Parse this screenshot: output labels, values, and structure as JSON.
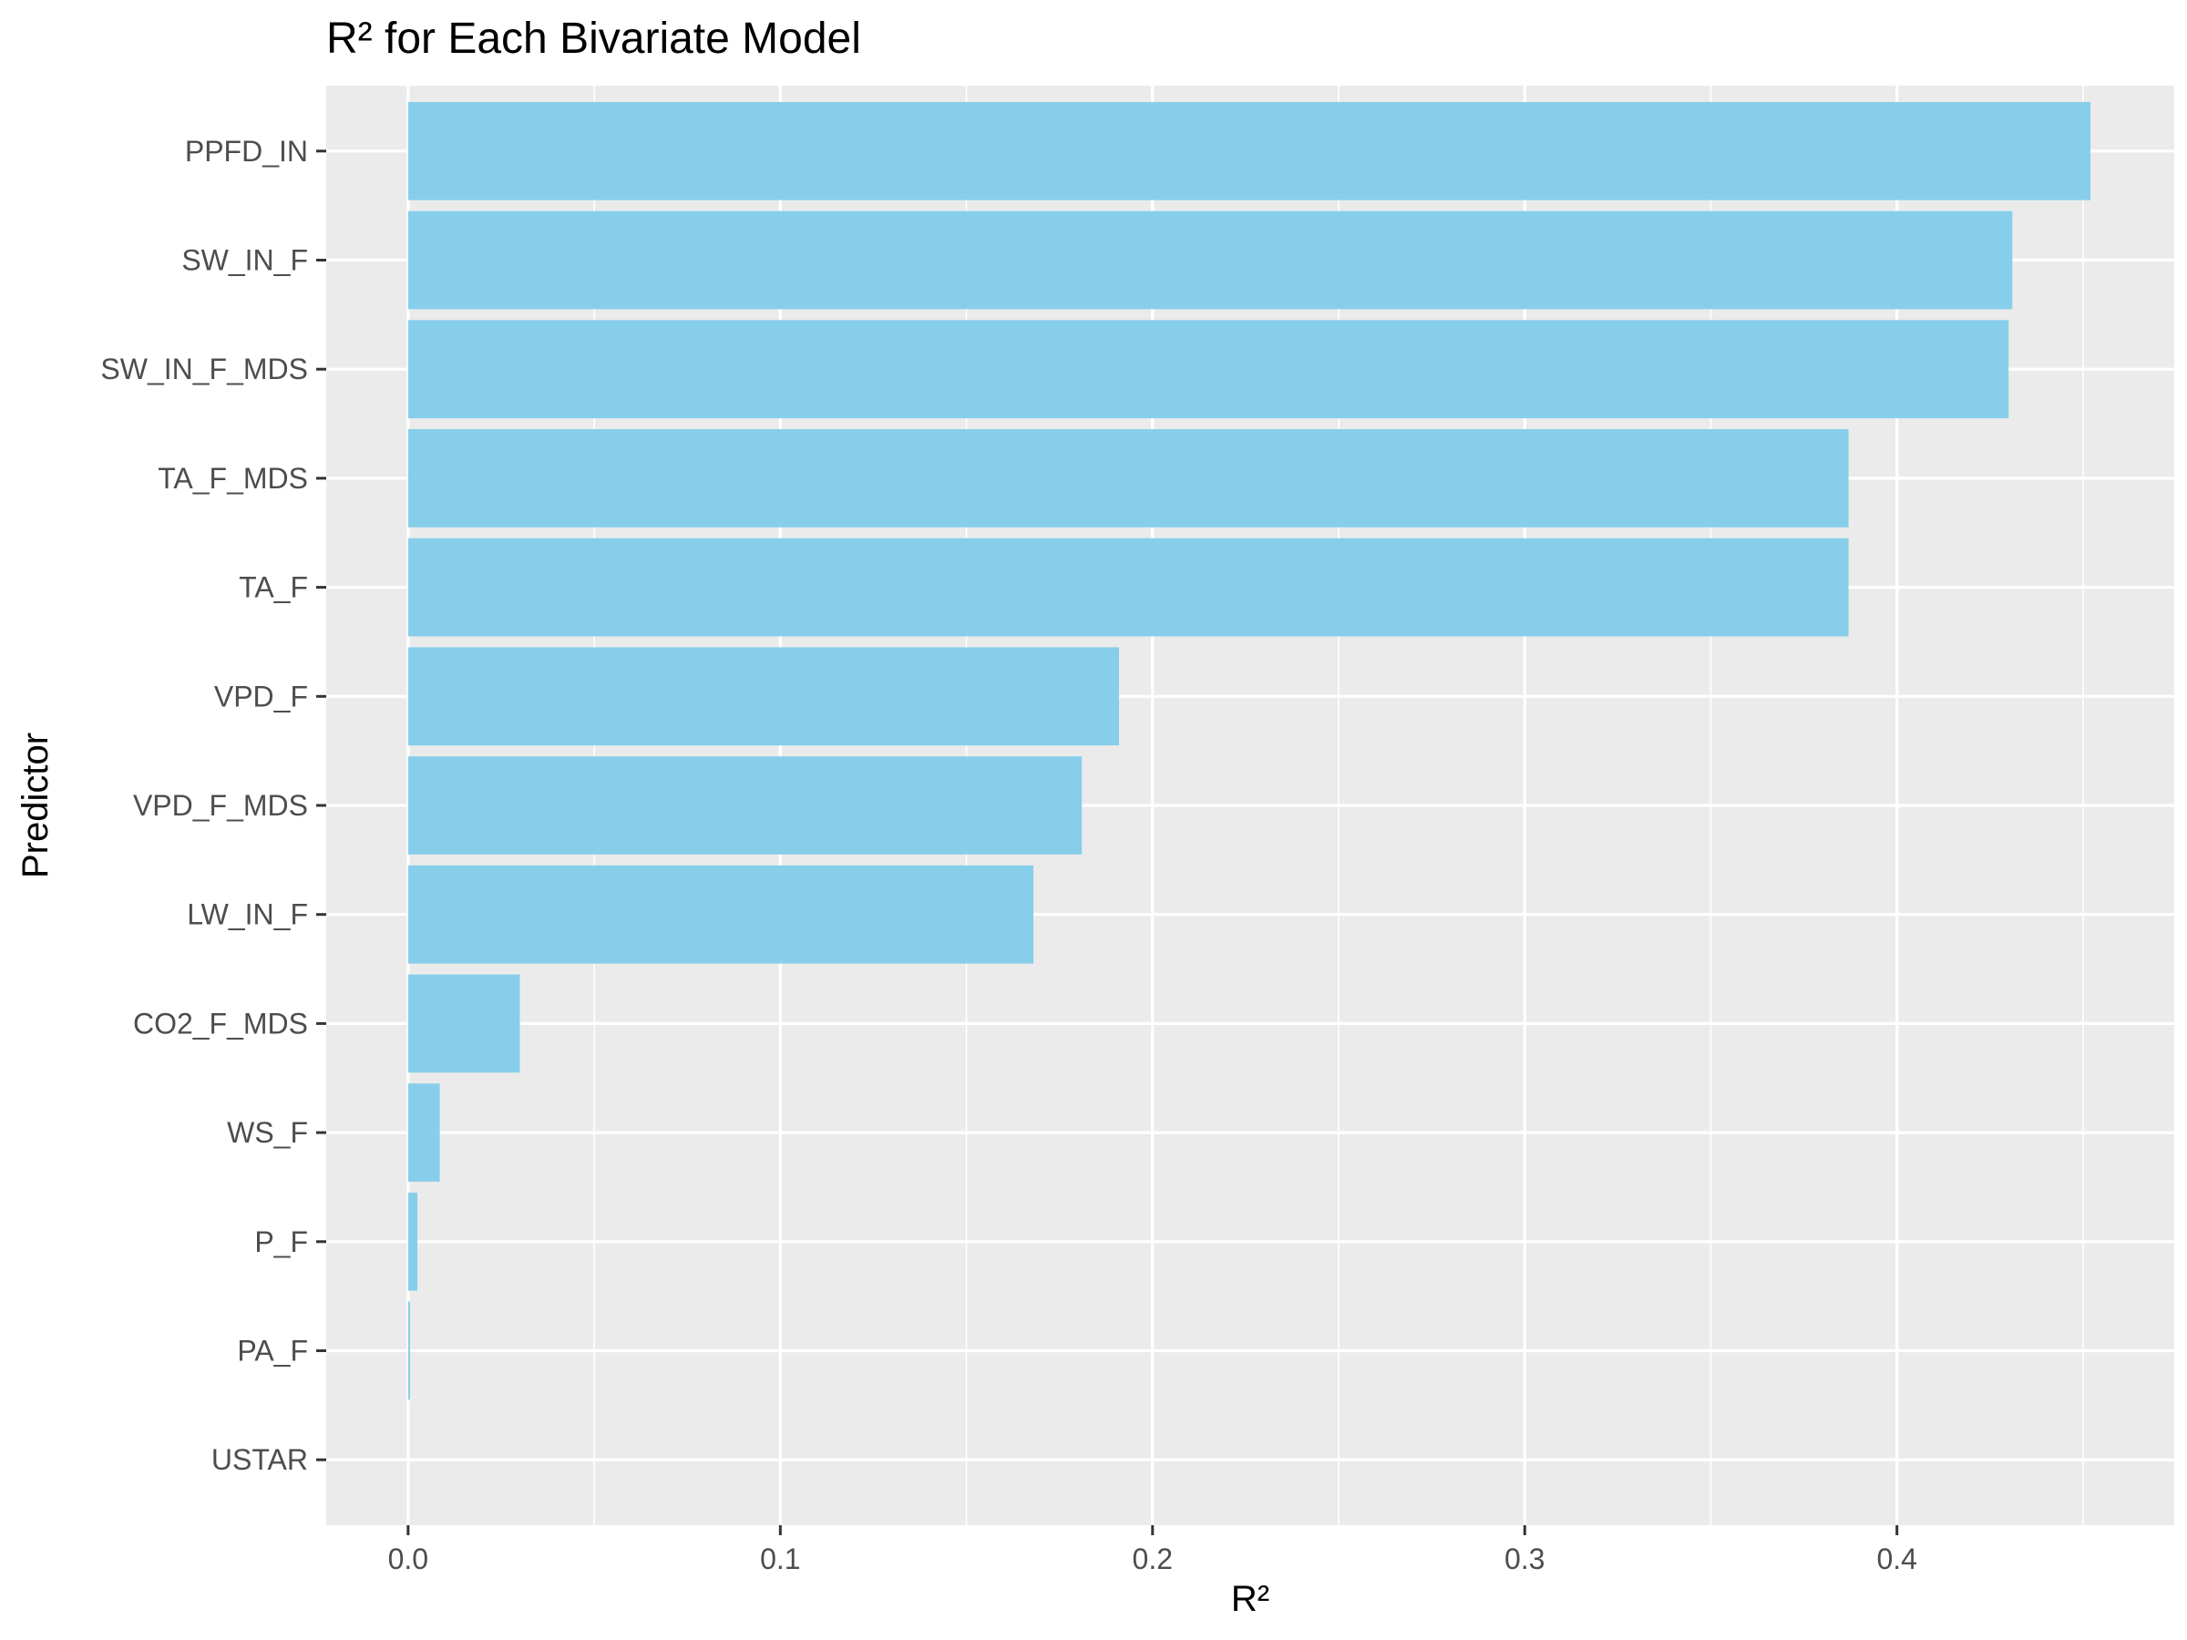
{
  "colors": {
    "panel": "#EBEBEB",
    "grid": "#FFFFFF",
    "bar": "#87CEEB",
    "tick": "#333333"
  },
  "chart_data": {
    "type": "bar",
    "orientation": "horizontal",
    "title": "R² for Each Bivariate Model",
    "xlabel": "R²",
    "ylabel": "Predictor",
    "categories": [
      "PPFD_IN",
      "SW_IN_F",
      "SW_IN_F_MDS",
      "TA_F_MDS",
      "TA_F",
      "VPD_F",
      "VPD_F_MDS",
      "LW_IN_F",
      "CO2_F_MDS",
      "WS_F",
      "P_F",
      "PA_F",
      "USTAR"
    ],
    "values": [
      0.452,
      0.431,
      0.43,
      0.387,
      0.387,
      0.191,
      0.181,
      0.168,
      0.03,
      0.0085,
      0.0025,
      0.0005,
      0.0
    ],
    "xlim": [
      -0.022,
      0.4745
    ],
    "xticks": [
      0.0,
      0.1,
      0.2,
      0.3,
      0.4
    ],
    "xtick_labels": [
      "0.0",
      "0.1",
      "0.2",
      "0.3",
      "0.4"
    ],
    "grid": true,
    "legend": "none"
  }
}
